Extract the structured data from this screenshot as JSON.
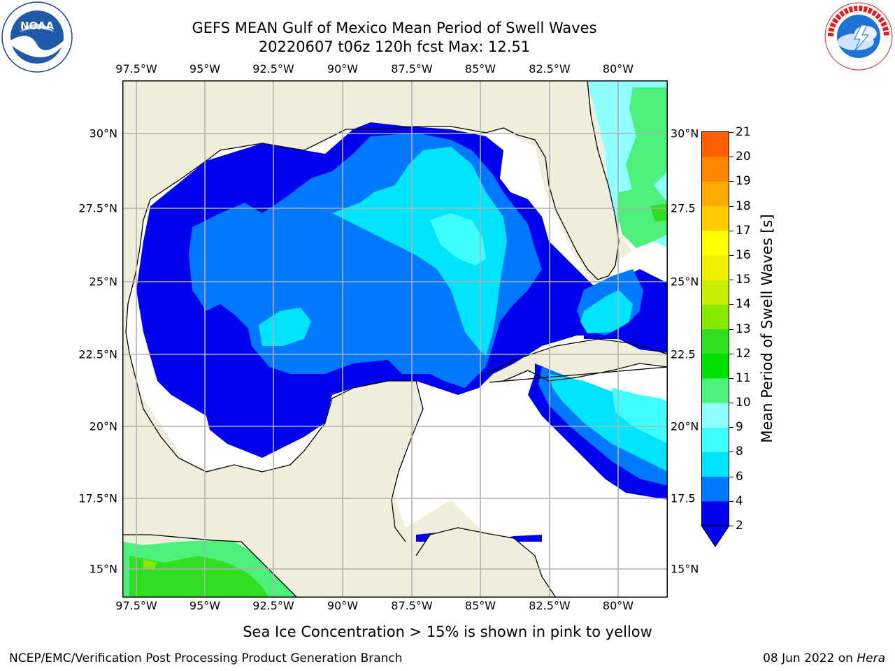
{
  "title": {
    "line1": "GEFS MEAN Gulf of Mexico Mean Period of Swell Waves",
    "line2": "20220607 t06z 120h fcst   Max: 12.51"
  },
  "logos": {
    "left": {
      "text": "NOAA",
      "ring": "NATIONAL OCEANIC AND ATMOSPHERIC ADMINISTRATION · U.S. DEPARTMENT OF COMMERCE",
      "icon": "noaa-logo-icon"
    },
    "right": {
      "ring": "NATIONAL WEATHER SERVICE",
      "icon": "nws-logo-icon"
    }
  },
  "map": {
    "lon_labels": [
      "97.5°W",
      "95°W",
      "92.5°W",
      "90°W",
      "87.5°W",
      "85°W",
      "82.5°W",
      "80°W"
    ],
    "lat_labels_left": [
      "30°N",
      "27.5°N",
      "25°N",
      "22.5°N",
      "20°N",
      "17.5°N",
      "15°N"
    ],
    "lat_labels_right": [
      "30°N",
      "27.5",
      "25°N",
      "22.5",
      "20°N",
      "17.5",
      "15°N"
    ],
    "land_color": "#efefdc",
    "grid_color": "#b0b0b0"
  },
  "colorbar": {
    "title": "Mean Period of Swell Waves [s]",
    "ticks": [
      "21",
      "20",
      "19",
      "18",
      "17",
      "16",
      "15",
      "14",
      "13",
      "12",
      "11",
      "10",
      "9",
      "8",
      "6",
      "4",
      "2"
    ],
    "colors": [
      "#0000f0",
      "#0078ff",
      "#00e5ff",
      "#40ffff",
      "#90ffff",
      "#4cf07a",
      "#00e000",
      "#30e020",
      "#88e800",
      "#c8f000",
      "#f0f000",
      "#ffff00",
      "#ffcc00",
      "#ffaa00",
      "#ff8800",
      "#ff6000",
      "#ff3800",
      "#ff0000"
    ]
  },
  "note": "Sea Ice Concentration > 15% is shown in pink to yellow",
  "footer": {
    "left": "NCEP/EMC/Verification Post Processing Product Generation Branch",
    "date": "08 Jun 2022 on ",
    "machine": "Hera"
  }
}
